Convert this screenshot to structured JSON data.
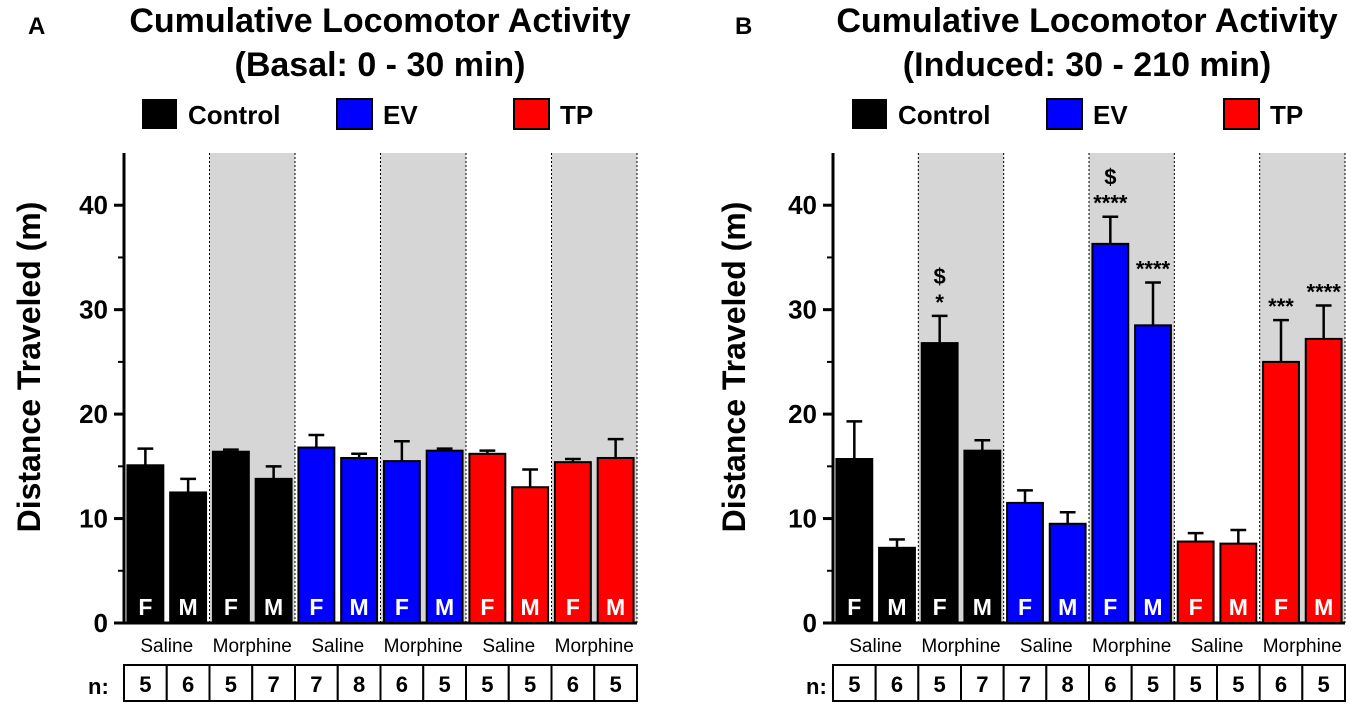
{
  "colors": {
    "control": "#000000",
    "ev": "#0000ff",
    "tp": "#ff0000",
    "shade": "#d6d6d6"
  },
  "chart_data": [
    {
      "panel": "A",
      "type": "bar",
      "title_line1": "Cumulative Locomotor Activity",
      "title_line2": "(Basal: 0 - 30 min)",
      "ylabel": "Distance Traveled (m)",
      "ylim": [
        0,
        45
      ],
      "yticks": [
        0,
        10,
        20,
        30,
        40
      ],
      "legend": [
        {
          "label": "Control",
          "color": "#000000"
        },
        {
          "label": "EV",
          "color": "#0000ff"
        },
        {
          "label": "TP",
          "color": "#ff0000"
        }
      ],
      "groups": [
        "Saline",
        "Morphine",
        "Saline",
        "Morphine",
        "Saline",
        "Morphine"
      ],
      "shaded_groups": [
        1,
        3,
        5
      ],
      "n_label": "n:",
      "bars": [
        {
          "sex": "F",
          "color": "#000000",
          "value": 15.1,
          "error": 1.6,
          "n": "5",
          "annotations": []
        },
        {
          "sex": "M",
          "color": "#000000",
          "value": 12.5,
          "error": 1.3,
          "n": "6",
          "annotations": []
        },
        {
          "sex": "F",
          "color": "#000000",
          "value": 16.4,
          "error": 0.2,
          "n": "5",
          "annotations": []
        },
        {
          "sex": "M",
          "color": "#000000",
          "value": 13.8,
          "error": 1.2,
          "n": "7",
          "annotations": []
        },
        {
          "sex": "F",
          "color": "#0000ff",
          "value": 16.8,
          "error": 1.2,
          "n": "7",
          "annotations": []
        },
        {
          "sex": "M",
          "color": "#0000ff",
          "value": 15.8,
          "error": 0.4,
          "n": "8",
          "annotations": []
        },
        {
          "sex": "F",
          "color": "#0000ff",
          "value": 15.5,
          "error": 1.9,
          "n": "6",
          "annotations": []
        },
        {
          "sex": "M",
          "color": "#0000ff",
          "value": 16.5,
          "error": 0.2,
          "n": "5",
          "annotations": []
        },
        {
          "sex": "F",
          "color": "#ff0000",
          "value": 16.2,
          "error": 0.3,
          "n": "5",
          "annotations": []
        },
        {
          "sex": "M",
          "color": "#ff0000",
          "value": 13.0,
          "error": 1.7,
          "n": "5",
          "annotations": []
        },
        {
          "sex": "F",
          "color": "#ff0000",
          "value": 15.4,
          "error": 0.3,
          "n": "6",
          "annotations": []
        },
        {
          "sex": "M",
          "color": "#ff0000",
          "value": 15.8,
          "error": 1.8,
          "n": "5",
          "annotations": []
        }
      ]
    },
    {
      "panel": "B",
      "type": "bar",
      "title_line1": "Cumulative Locomotor Activity",
      "title_line2": "(Induced: 30 - 210 min)",
      "ylabel": "Distance Traveled (m)",
      "ylim": [
        0,
        45
      ],
      "yticks": [
        0,
        10,
        20,
        30,
        40
      ],
      "legend": [
        {
          "label": "Control",
          "color": "#000000"
        },
        {
          "label": "EV",
          "color": "#0000ff"
        },
        {
          "label": "TP",
          "color": "#ff0000"
        }
      ],
      "groups": [
        "Saline",
        "Morphine",
        "Saline",
        "Morphine",
        "Saline",
        "Morphine"
      ],
      "shaded_groups": [
        1,
        3,
        5
      ],
      "n_label": "n:",
      "bars": [
        {
          "sex": "F",
          "color": "#000000",
          "value": 15.7,
          "error": 3.6,
          "n": "5",
          "annotations": []
        },
        {
          "sex": "M",
          "color": "#000000",
          "value": 7.2,
          "error": 0.8,
          "n": "6",
          "annotations": []
        },
        {
          "sex": "F",
          "color": "#000000",
          "value": 26.8,
          "error": 2.6,
          "n": "5",
          "annotations": [
            "$",
            "*"
          ]
        },
        {
          "sex": "M",
          "color": "#000000",
          "value": 16.5,
          "error": 1.0,
          "n": "7",
          "annotations": []
        },
        {
          "sex": "F",
          "color": "#0000ff",
          "value": 11.5,
          "error": 1.2,
          "n": "7",
          "annotations": []
        },
        {
          "sex": "M",
          "color": "#0000ff",
          "value": 9.5,
          "error": 1.1,
          "n": "8",
          "annotations": []
        },
        {
          "sex": "F",
          "color": "#0000ff",
          "value": 36.3,
          "error": 2.6,
          "n": "6",
          "annotations": [
            "$",
            "****"
          ]
        },
        {
          "sex": "M",
          "color": "#0000ff",
          "value": 28.5,
          "error": 4.1,
          "n": "5",
          "annotations": [
            "****"
          ]
        },
        {
          "sex": "F",
          "color": "#ff0000",
          "value": 7.8,
          "error": 0.8,
          "n": "5",
          "annotations": []
        },
        {
          "sex": "M",
          "color": "#ff0000",
          "value": 7.6,
          "error": 1.3,
          "n": "5",
          "annotations": []
        },
        {
          "sex": "F",
          "color": "#ff0000",
          "value": 25.0,
          "error": 4.0,
          "n": "6",
          "annotations": [
            "***"
          ]
        },
        {
          "sex": "M",
          "color": "#ff0000",
          "value": 27.2,
          "error": 3.2,
          "n": "5",
          "annotations": [
            "****"
          ]
        }
      ]
    }
  ]
}
